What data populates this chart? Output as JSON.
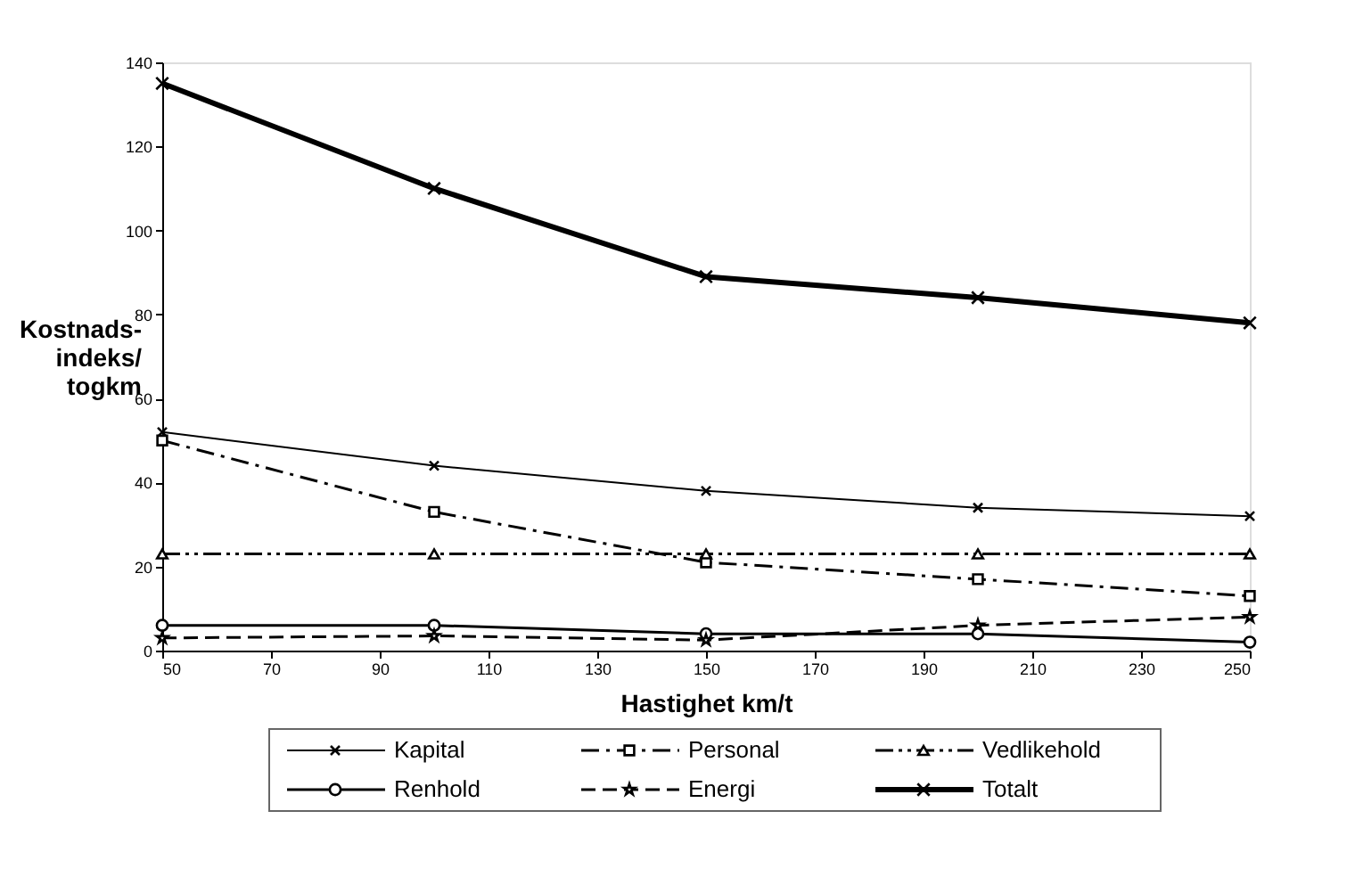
{
  "chart_data": {
    "type": "line",
    "xlabel": "Hastighet km/t",
    "ylabel": "Kostnads-\nindeks/\ntogkm",
    "x": [
      50,
      100,
      150,
      200,
      250
    ],
    "series": [
      {
        "name": "Kapital",
        "color": "#000000",
        "values": [
          52,
          44,
          38,
          34,
          32
        ],
        "marker": "cross",
        "line_style": "solid"
      },
      {
        "name": "Personal",
        "color": "#000000",
        "values": [
          50,
          33,
          21,
          17,
          13
        ],
        "marker": "square",
        "line_style": "dashed"
      },
      {
        "name": "Vedlikehold",
        "color": "#000000",
        "values": [
          23,
          23,
          23,
          23,
          23
        ],
        "marker": "triangle",
        "line_style": "dashed"
      },
      {
        "name": "Renhold",
        "color": "#000000",
        "values": [
          6,
          6,
          4,
          4,
          2
        ],
        "marker": "circle",
        "line_style": "solid"
      },
      {
        "name": "Energi",
        "color": "#000000",
        "values": [
          3,
          3.5,
          2.5,
          6,
          8
        ],
        "marker": "star",
        "line_style": "dashed"
      },
      {
        "name": "Totalt",
        "color": "#000000",
        "values": [
          135,
          110,
          89,
          84,
          78
        ],
        "marker": "cross",
        "line_style": "solid"
      }
    ],
    "xlim": [
      50,
      250
    ],
    "xticks": [
      50,
      70,
      90,
      110,
      130,
      150,
      170,
      190,
      210,
      230,
      250
    ],
    "ylim": [
      0,
      140
    ],
    "yticks": [
      0,
      20,
      40,
      60,
      80,
      100,
      120,
      140
    ],
    "grid": false,
    "legend": "bottom"
  }
}
